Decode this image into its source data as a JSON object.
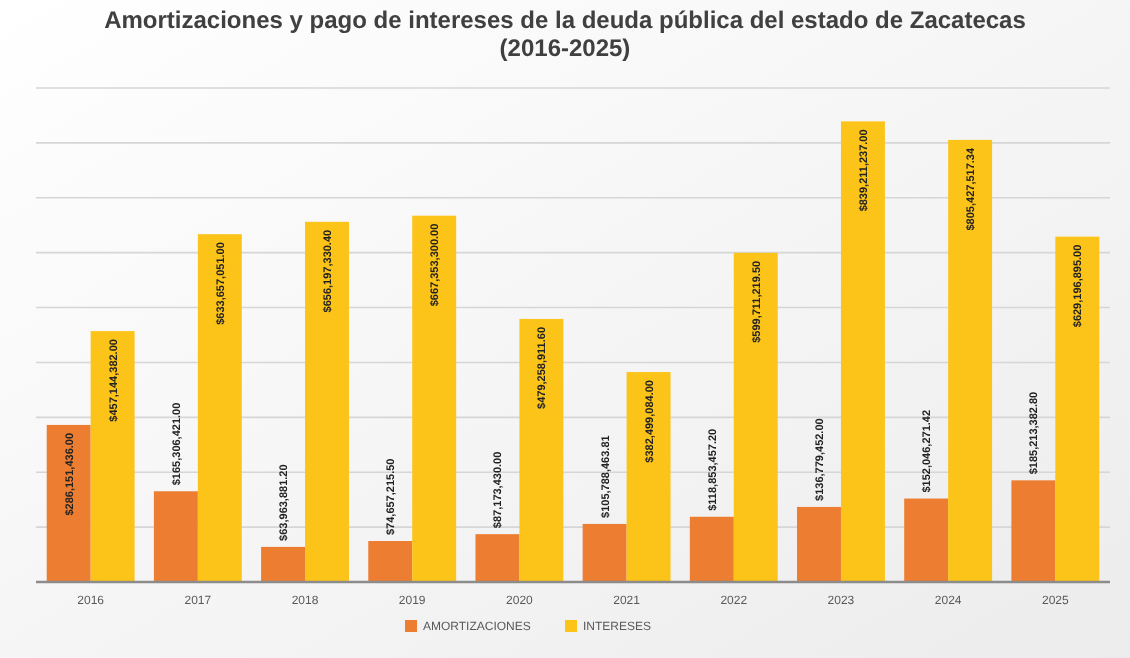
{
  "chart_data": {
    "type": "bar",
    "title": "Amortizaciones y pago de intereses de la deuda pública del estado de Zacatecas\n(2016-2025)",
    "categories": [
      "2016",
      "2017",
      "2018",
      "2019",
      "2020",
      "2021",
      "2022",
      "2023",
      "2024",
      "2025"
    ],
    "series": [
      {
        "name": "AMORTIZACIONES",
        "color": "#ed7d31",
        "values": [
          286151436.0,
          165306421.0,
          63963881.2,
          74657215.5,
          87173430.0,
          105788463.81,
          118853457.2,
          136779452.0,
          152046271.42,
          185213382.8
        ],
        "value_labels": [
          "$286,151,436.00",
          "$165,306,421.00",
          "$63,963,881.20",
          "$74,657,215.50",
          "$87,173,430.00",
          "$105,788,463.81",
          "$118,853,457.20",
          "$136,779,452.00",
          "$152,046,271.42",
          "$185,213,382.80"
        ]
      },
      {
        "name": "INTERESES",
        "color": "#fcc419",
        "values": [
          457144382.0,
          633657051.0,
          656197330.4,
          667353300.0,
          479258911.6,
          382499084.0,
          599711219.5,
          839211237.0,
          805427517.34,
          629196895.0
        ],
        "value_labels": [
          "$457,144,382.00",
          "$633,657,051.00",
          "$656,197,330.40",
          "$667,353,300.00",
          "$479,258,911.60",
          "$382,499,084.00",
          "$599,711,219.50",
          "$839,211,237.00",
          "$805,427,517.34",
          "$629,196,895.00"
        ]
      }
    ],
    "ylim": [
      0,
      900000000
    ],
    "yticks": [
      {
        "value": 0,
        "label": null
      },
      {
        "value": 100000000,
        "label": null
      },
      {
        "value": 200000000,
        "label": null
      },
      {
        "value": 300000000,
        "label": null
      },
      {
        "value": 400000000,
        "label": null
      },
      {
        "value": 500000000,
        "label": null
      },
      {
        "value": 600000000,
        "label": null
      },
      {
        "value": 700000000,
        "label": null
      },
      {
        "value": 800000000,
        "label": null
      },
      {
        "value": 900000000,
        "label": null
      }
    ],
    "grid": "y",
    "legend": "bottom",
    "tick_labels": "x"
  }
}
